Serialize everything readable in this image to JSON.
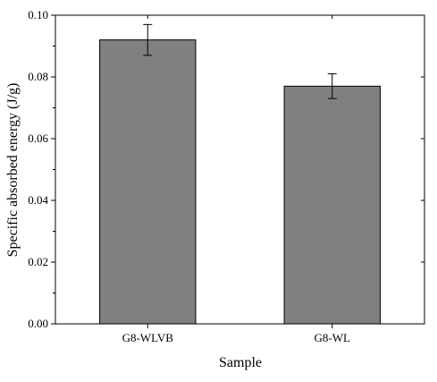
{
  "chart_data": {
    "type": "bar",
    "title": "",
    "xlabel": "Sample",
    "ylabel": "Specific absorbed energy (J/g)",
    "categories": [
      "G8-WLVB",
      "G8-WL"
    ],
    "values": [
      0.092,
      0.077
    ],
    "errors": [
      0.005,
      0.004
    ],
    "ylim": [
      0,
      0.1
    ],
    "yticks": [
      "0.00",
      "0.02",
      "0.04",
      "0.06",
      "0.08",
      "0.10"
    ],
    "ytick_values": [
      0,
      0.02,
      0.04,
      0.06,
      0.08,
      0.1
    ],
    "grid": false,
    "legend": "none",
    "bar_color": "#808080",
    "bar_edge_color": "#000000"
  }
}
